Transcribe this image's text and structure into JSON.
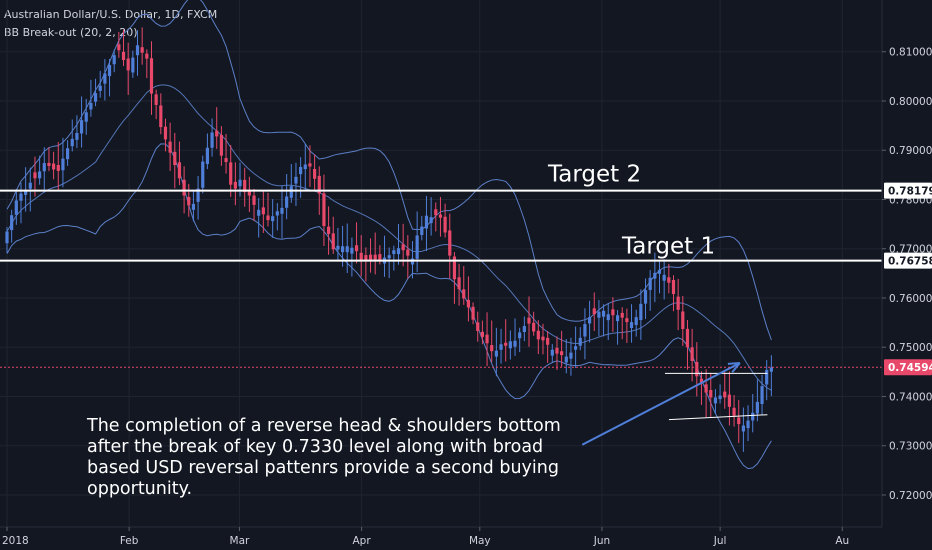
{
  "header": {
    "symbol_line": "Australian Dollar/U.S. Dollar, 1D, FXCM",
    "indicator_line": "BB Break-out (20, 2, 20)"
  },
  "chart_data": {
    "type": "candlestick",
    "title": "Australian Dollar/U.S. Dollar, 1D, FXCM",
    "indicator": "BB Break-out (20, 2, 20)",
    "ylim": [
      0.7135,
      0.8205
    ],
    "y_ticks": [
      "0.81000",
      "0.80000",
      "0.79000",
      "0.78000",
      "0.77000",
      "0.76000",
      "0.75000",
      "0.74000",
      "0.73000",
      "0.72000"
    ],
    "x_ticks": [
      {
        "label": "2018",
        "day": 0
      },
      {
        "label": "Feb",
        "day": 31
      },
      {
        "label": "Mar",
        "day": 59
      },
      {
        "label": "Apr",
        "day": 90
      },
      {
        "label": "May",
        "day": 120
      },
      {
        "label": "Jun",
        "day": 151
      },
      {
        "label": "Jul",
        "day": 181
      },
      {
        "label": "Au",
        "day": 212
      }
    ],
    "price_tags": [
      {
        "value": 0.78179,
        "label": "0.78179",
        "style": "white"
      },
      {
        "value": 0.76758,
        "label": "0.76758",
        "style": "white"
      },
      {
        "value": 0.74594,
        "label": "0.74594",
        "style": "red"
      }
    ],
    "horizontal_levels": [
      {
        "name": "Target 2",
        "value": 0.78179
      },
      {
        "name": "Target 1",
        "value": 0.76758
      }
    ],
    "last_price_line": 0.74594,
    "annotations": {
      "target2": "Target 2",
      "target1": "Target 1",
      "note_lines": [
        "The completion of a reverse head & shoulders bottom",
        "after the break of key 0.7330 level along with broad",
        "based USD reversal pattenrs provide a second buying",
        "opportunity."
      ]
    },
    "pattern_lines": [
      {
        "name": "neckline",
        "from": {
          "day": 167,
          "value": 0.7447
        },
        "to": {
          "day": 193,
          "value": 0.7447
        }
      },
      {
        "name": "shoulder-support",
        "from": {
          "day": 168,
          "value": 0.7353
        },
        "to": {
          "day": 193,
          "value": 0.7363
        }
      },
      {
        "name": "arrow",
        "from": {
          "day": 146,
          "value": 0.7302
        },
        "to": {
          "day": 186,
          "value": 0.7468
        }
      }
    ],
    "candles_close": [
      0.7735,
      0.7768,
      0.7798,
      0.7812,
      0.7818,
      0.7834,
      0.7843,
      0.7857,
      0.7874,
      0.7868,
      0.7861,
      0.7858,
      0.7883,
      0.7904,
      0.7923,
      0.7935,
      0.7961,
      0.7977,
      0.7996,
      0.8016,
      0.8031,
      0.8056,
      0.8073,
      0.8093,
      0.8103,
      0.8083,
      0.8062,
      0.8088,
      0.8113,
      0.8098,
      0.8086,
      0.8015,
      0.7992,
      0.7947,
      0.7922,
      0.7895,
      0.787,
      0.7843,
      0.7808,
      0.7788,
      0.7791,
      0.7822,
      0.7877,
      0.7905,
      0.7936,
      0.7928,
      0.7889,
      0.7876,
      0.783,
      0.7822,
      0.784,
      0.7815,
      0.7808,
      0.7789,
      0.7779,
      0.777,
      0.7758,
      0.7766,
      0.7776,
      0.7783,
      0.7806,
      0.7827,
      0.7846,
      0.7866,
      0.7871,
      0.7867,
      0.7842,
      0.7812,
      0.7746,
      0.773,
      0.7699,
      0.7706,
      0.7705,
      0.7705,
      0.7702,
      0.7695,
      0.7674,
      0.7675,
      0.7676,
      0.7676,
      0.7677,
      0.7682,
      0.7687,
      0.7697,
      0.7701,
      0.7697,
      0.7686,
      0.768,
      0.7727,
      0.7745,
      0.7767,
      0.7764,
      0.7768,
      0.7763,
      0.7733,
      0.7686,
      0.7638,
      0.7618,
      0.7599,
      0.7581,
      0.7556,
      0.7533,
      0.7521,
      0.7508,
      0.7492,
      0.7493,
      0.7506,
      0.7503,
      0.7512,
      0.7513,
      0.753,
      0.7543,
      0.7548,
      0.7532,
      0.7516,
      0.7514,
      0.7505,
      0.7495,
      0.7487,
      0.7484,
      0.7481,
      0.7489,
      0.7502,
      0.7519,
      0.7547,
      0.7561,
      0.7567,
      0.7572,
      0.7574,
      0.7567,
      0.7565,
      0.7565,
      0.756,
      0.7551,
      0.7551,
      0.7561,
      0.7588,
      0.7616,
      0.7641,
      0.7651,
      0.7657,
      0.7647,
      0.7631,
      0.7608,
      0.7576,
      0.7537,
      0.75,
      0.7472,
      0.7441,
      0.7426,
      0.7408,
      0.7398,
      0.7398,
      0.7402,
      0.7398,
      0.7379,
      0.7361,
      0.7344,
      0.7341,
      0.7351,
      0.7367,
      0.7389,
      0.7421,
      0.7454,
      0.7459
    ]
  }
}
